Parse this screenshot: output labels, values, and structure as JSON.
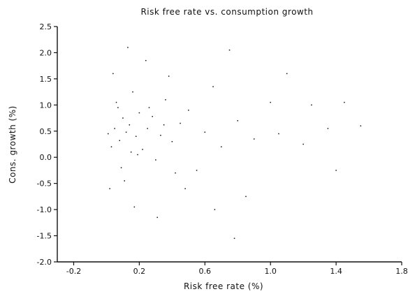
{
  "chart_data": {
    "type": "scatter",
    "title": "Risk free rate vs. consumption growth",
    "xlabel": "Risk free rate (%)",
    "ylabel": "Cons. growth (%)",
    "xlim": [
      -0.3,
      1.8
    ],
    "ylim": [
      -2.0,
      2.5
    ],
    "xticks": [
      "-0.2",
      "0.2",
      "0.6",
      "1.0",
      "1.4",
      "1.8"
    ],
    "xtick_values": [
      -0.2,
      0.2,
      0.6,
      1.0,
      1.4,
      1.8
    ],
    "yticks": [
      "2.5",
      "2.0",
      "1.5",
      "1.0",
      "0.5",
      "0.0",
      "-0.5",
      "-1.0",
      "-1.5",
      "-2.0"
    ],
    "ytick_values": [
      2.5,
      2.0,
      1.5,
      1.0,
      0.5,
      0.0,
      -0.5,
      -1.0,
      -1.5,
      -2.0
    ],
    "grid": false,
    "legend": "none",
    "point_color": "#111111",
    "series": [
      {
        "points": [
          [
            0.05,
            0.55
          ],
          [
            0.08,
            0.32
          ],
          [
            0.1,
            0.75
          ],
          [
            0.12,
            0.48
          ],
          [
            0.15,
            0.1
          ],
          [
            0.06,
            1.05
          ],
          [
            0.09,
            -0.2
          ],
          [
            0.14,
            0.62
          ],
          [
            0.18,
            0.4
          ],
          [
            0.2,
            0.85
          ],
          [
            0.03,
            0.2
          ],
          [
            0.07,
            0.95
          ],
          [
            0.11,
            -0.45
          ],
          [
            0.16,
            1.25
          ],
          [
            0.22,
            0.15
          ],
          [
            0.25,
            0.55
          ],
          [
            0.28,
            0.78
          ],
          [
            0.3,
            -0.05
          ],
          [
            0.33,
            0.42
          ],
          [
            0.36,
            1.1
          ],
          [
            0.4,
            0.3
          ],
          [
            0.45,
            0.65
          ],
          [
            0.5,
            0.9
          ],
          [
            0.55,
            -0.25
          ],
          [
            0.6,
            0.48
          ],
          [
            0.65,
            1.35
          ],
          [
            0.7,
            0.2
          ],
          [
            0.75,
            2.05
          ],
          [
            0.8,
            0.7
          ],
          [
            0.85,
            -0.75
          ],
          [
            0.9,
            0.35
          ],
          [
            1.0,
            1.05
          ],
          [
            1.05,
            0.45
          ],
          [
            1.1,
            1.6
          ],
          [
            1.2,
            0.25
          ],
          [
            1.25,
            1.0
          ],
          [
            1.35,
            0.55
          ],
          [
            1.4,
            -0.25
          ],
          [
            1.45,
            1.05
          ],
          [
            1.55,
            0.6
          ],
          [
            0.02,
            -0.6
          ],
          [
            0.04,
            1.6
          ],
          [
            0.13,
            2.1
          ],
          [
            0.17,
            -0.95
          ],
          [
            0.24,
            1.85
          ],
          [
            0.31,
            -1.15
          ],
          [
            0.38,
            1.55
          ],
          [
            0.48,
            -0.6
          ],
          [
            0.66,
            -1.0
          ],
          [
            0.78,
            -1.55
          ],
          [
            0.01,
            0.45
          ],
          [
            0.19,
            0.05
          ],
          [
            0.26,
            0.95
          ],
          [
            0.35,
            0.62
          ],
          [
            0.42,
            -0.3
          ]
        ]
      }
    ]
  }
}
